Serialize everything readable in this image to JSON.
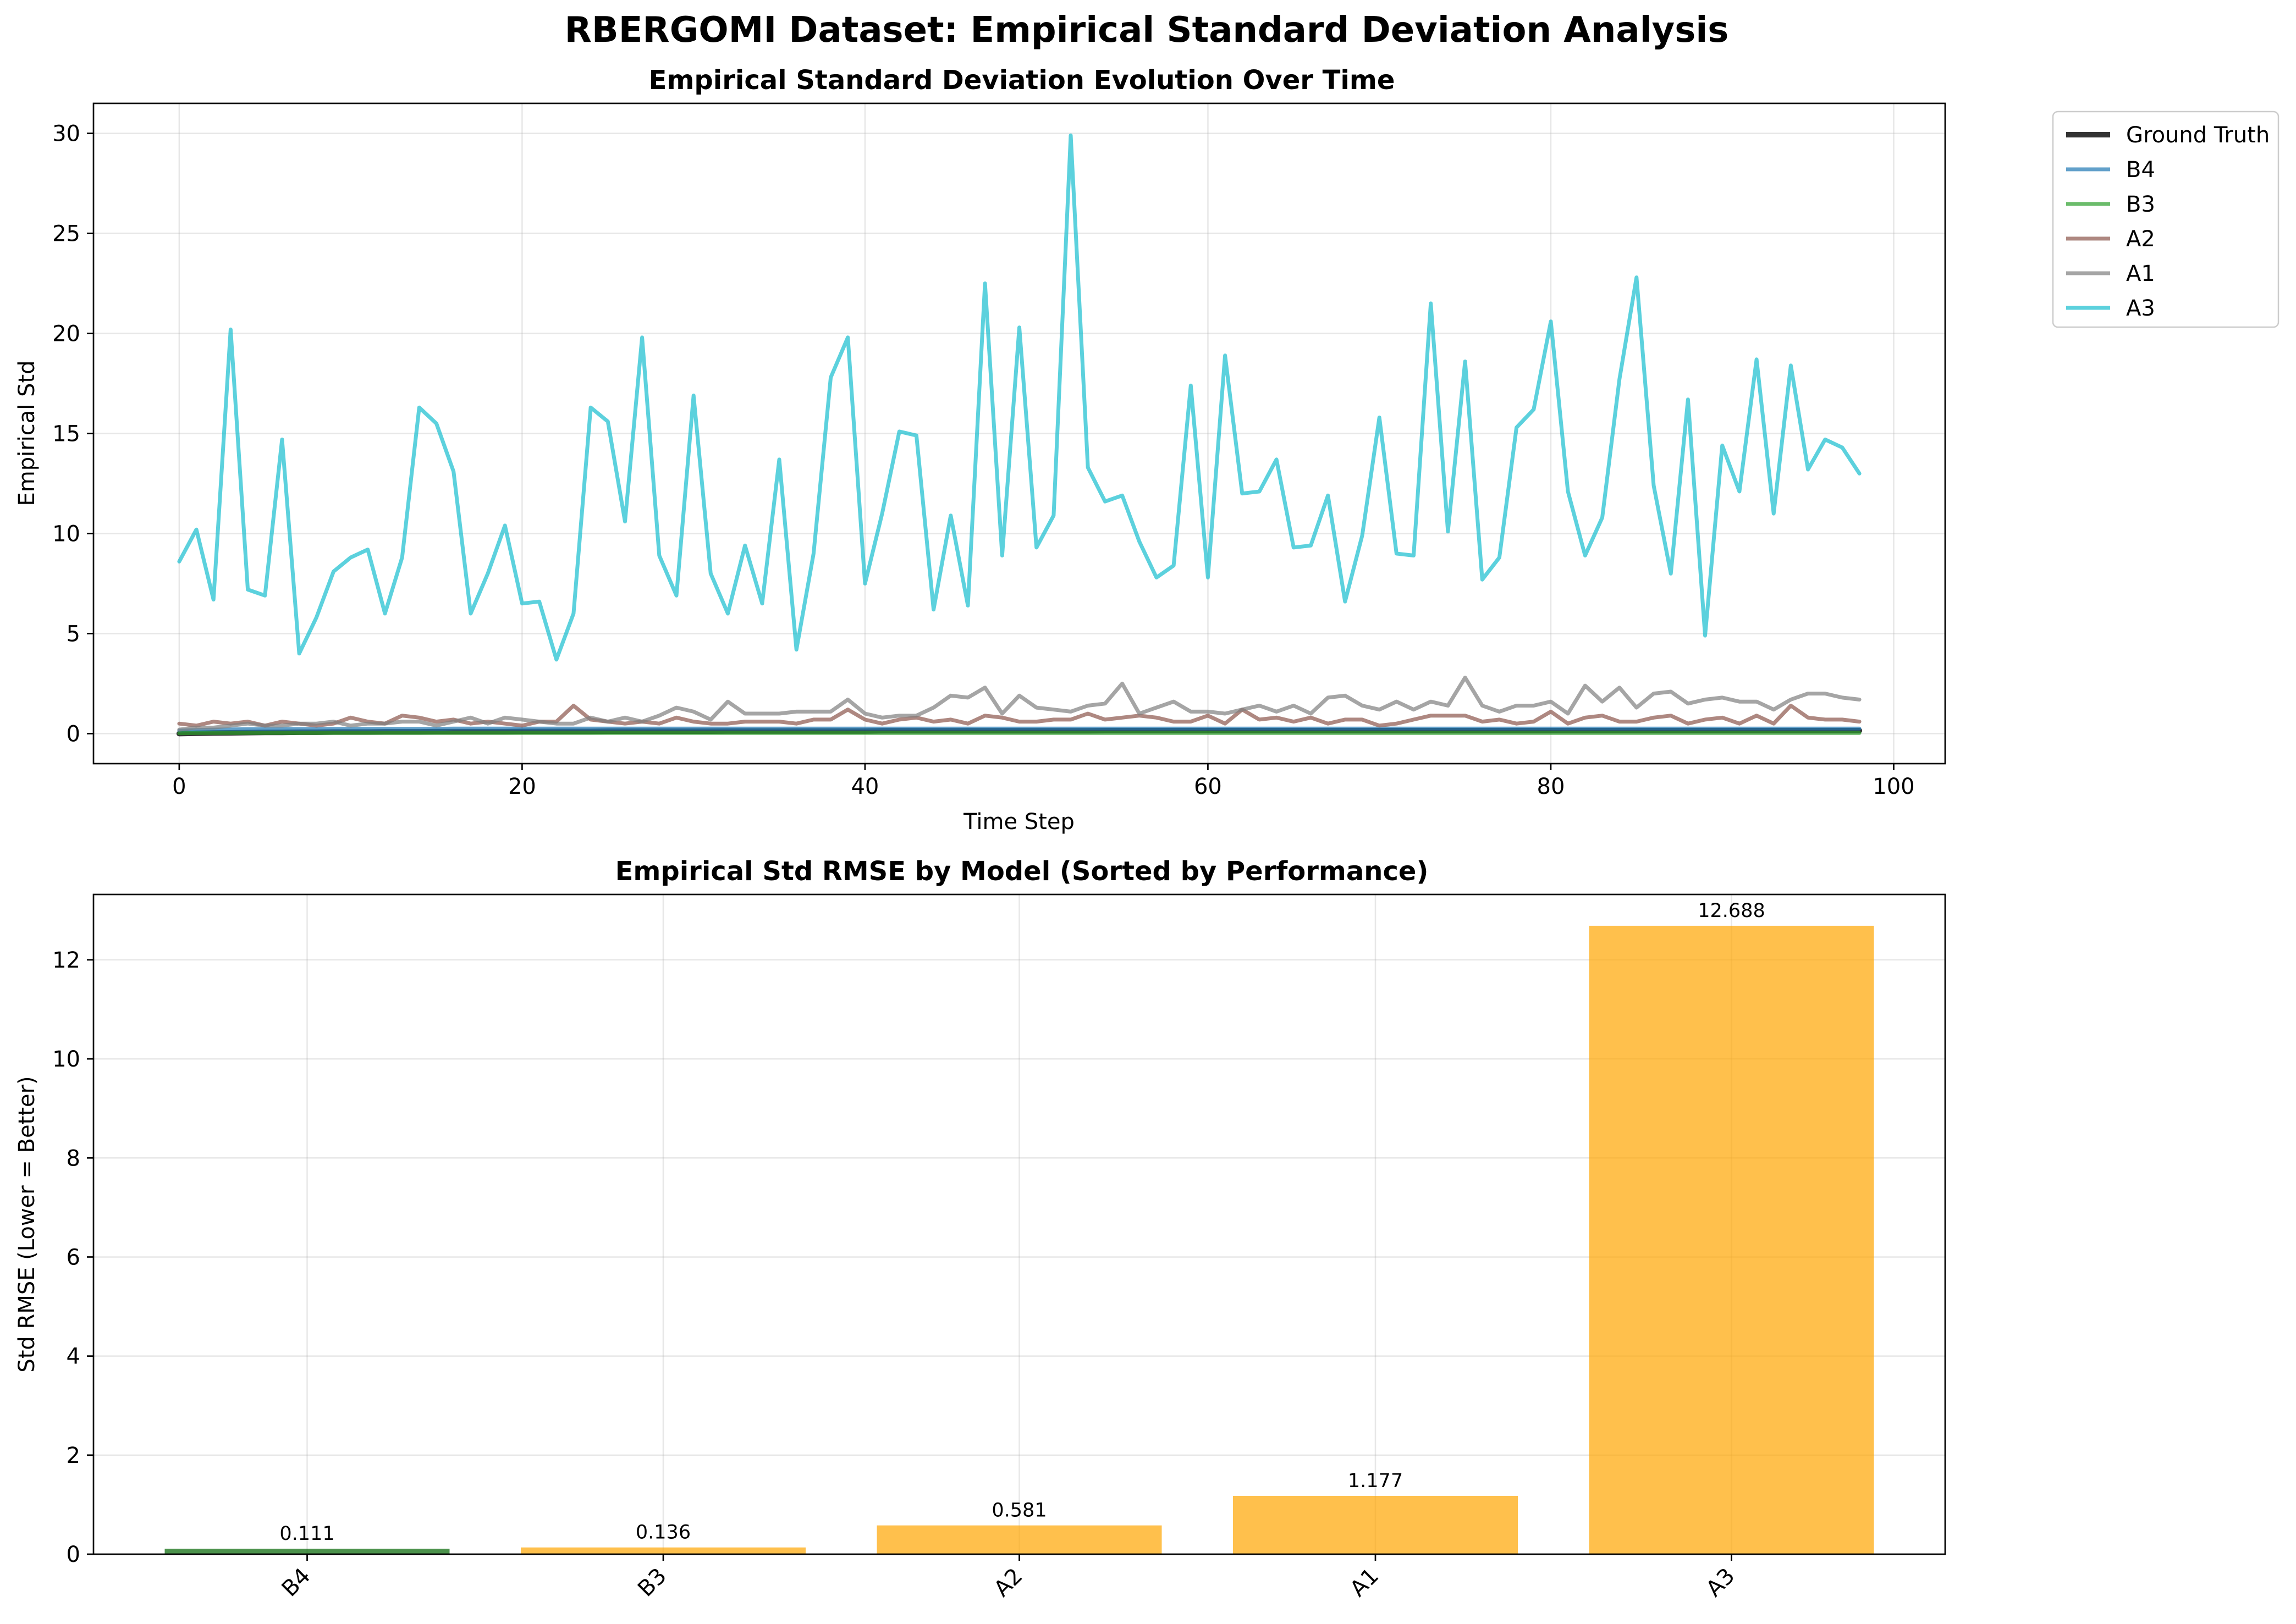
{
  "suptitle": "RBERGOMI Dataset: Empirical Standard Deviation Analysis",
  "chart_data": [
    {
      "type": "line",
      "title": "Empirical Standard Deviation Evolution Over Time",
      "xlabel": "Time Step",
      "ylabel": "Empirical Std",
      "xlim": [
        -5,
        103
      ],
      "ylim": [
        -1.5,
        31.5
      ],
      "xticks": [
        0,
        20,
        40,
        60,
        80,
        100
      ],
      "yticks": [
        0,
        5,
        10,
        15,
        20,
        25,
        30
      ],
      "grid": true,
      "legend_position": "outside upper right",
      "series": [
        {
          "name": "Ground Truth",
          "color": "#000000",
          "values": [
            0.0,
            0.02,
            0.03,
            0.04,
            0.05,
            0.06,
            0.06,
            0.07,
            0.07,
            0.08,
            0.08,
            0.08,
            0.09,
            0.09,
            0.09,
            0.1,
            0.1,
            0.1,
            0.1,
            0.1,
            0.11,
            0.11,
            0.11,
            0.11,
            0.11,
            0.12,
            0.12,
            0.12,
            0.12,
            0.12,
            0.12,
            0.12,
            0.13,
            0.13,
            0.13,
            0.13,
            0.13,
            0.13,
            0.13,
            0.13,
            0.13,
            0.14,
            0.14,
            0.14,
            0.14,
            0.14,
            0.14,
            0.14,
            0.14,
            0.14,
            0.14,
            0.14,
            0.14,
            0.14,
            0.15,
            0.15,
            0.15,
            0.15,
            0.15,
            0.15,
            0.15,
            0.15,
            0.15,
            0.15,
            0.15,
            0.15,
            0.15,
            0.15,
            0.15,
            0.15,
            0.15,
            0.15,
            0.15,
            0.15,
            0.15,
            0.15,
            0.15,
            0.15,
            0.15,
            0.15,
            0.15,
            0.15,
            0.15,
            0.15,
            0.15,
            0.15,
            0.15,
            0.15,
            0.15,
            0.15,
            0.15,
            0.15,
            0.15,
            0.15,
            0.15,
            0.15,
            0.15,
            0.15,
            0.15
          ]
        },
        {
          "name": "B4",
          "color": "#1f77b4",
          "values": [
            0.15,
            0.18,
            0.2,
            0.21,
            0.22,
            0.22,
            0.23,
            0.23,
            0.23,
            0.24,
            0.24,
            0.24,
            0.24,
            0.24,
            0.24,
            0.24,
            0.25,
            0.25,
            0.25,
            0.25,
            0.25,
            0.25,
            0.25,
            0.25,
            0.25,
            0.25,
            0.25,
            0.25,
            0.25,
            0.25,
            0.25,
            0.25,
            0.25,
            0.25,
            0.25,
            0.25,
            0.25,
            0.25,
            0.25,
            0.25,
            0.25,
            0.25,
            0.25,
            0.25,
            0.25,
            0.25,
            0.25,
            0.25,
            0.25,
            0.25,
            0.25,
            0.25,
            0.25,
            0.25,
            0.25,
            0.25,
            0.25,
            0.25,
            0.25,
            0.25,
            0.25,
            0.25,
            0.25,
            0.25,
            0.25,
            0.25,
            0.25,
            0.25,
            0.25,
            0.25,
            0.25,
            0.25,
            0.25,
            0.25,
            0.25,
            0.25,
            0.25,
            0.25,
            0.25,
            0.25,
            0.25,
            0.25,
            0.25,
            0.25,
            0.25,
            0.25,
            0.25,
            0.25,
            0.25,
            0.25,
            0.25,
            0.25,
            0.25,
            0.25,
            0.25,
            0.25,
            0.25,
            0.25,
            0.25
          ]
        },
        {
          "name": "B3",
          "color": "#2ca02c",
          "values": [
            0.02,
            0.03,
            0.03,
            0.03,
            0.03,
            0.03,
            0.03,
            0.03,
            0.03,
            0.03,
            0.03,
            0.03,
            0.03,
            0.03,
            0.03,
            0.03,
            0.03,
            0.03,
            0.03,
            0.03,
            0.03,
            0.03,
            0.03,
            0.03,
            0.03,
            0.03,
            0.03,
            0.03,
            0.03,
            0.03,
            0.03,
            0.03,
            0.03,
            0.03,
            0.03,
            0.03,
            0.03,
            0.03,
            0.03,
            0.03,
            0.03,
            0.03,
            0.03,
            0.03,
            0.03,
            0.03,
            0.03,
            0.03,
            0.03,
            0.03,
            0.03,
            0.03,
            0.03,
            0.03,
            0.03,
            0.03,
            0.03,
            0.03,
            0.03,
            0.03,
            0.03,
            0.03,
            0.03,
            0.03,
            0.03,
            0.03,
            0.03,
            0.03,
            0.03,
            0.03,
            0.03,
            0.03,
            0.03,
            0.03,
            0.03,
            0.03,
            0.03,
            0.03,
            0.03,
            0.03,
            0.03,
            0.03,
            0.03,
            0.03,
            0.03,
            0.03,
            0.03,
            0.03,
            0.03,
            0.03,
            0.03,
            0.03,
            0.03,
            0.03,
            0.03,
            0.03,
            0.03,
            0.03,
            0.03
          ]
        },
        {
          "name": "A2",
          "color": "#8c564b",
          "values": [
            0.5,
            0.4,
            0.6,
            0.5,
            0.6,
            0.4,
            0.6,
            0.5,
            0.4,
            0.5,
            0.8,
            0.6,
            0.5,
            0.9,
            0.8,
            0.6,
            0.7,
            0.5,
            0.6,
            0.5,
            0.4,
            0.6,
            0.6,
            1.4,
            0.7,
            0.6,
            0.5,
            0.6,
            0.5,
            0.8,
            0.6,
            0.5,
            0.5,
            0.6,
            0.6,
            0.6,
            0.5,
            0.7,
            0.7,
            1.2,
            0.7,
            0.5,
            0.7,
            0.8,
            0.6,
            0.7,
            0.5,
            0.9,
            0.8,
            0.6,
            0.6,
            0.7,
            0.7,
            1.0,
            0.7,
            0.8,
            0.9,
            0.8,
            0.6,
            0.6,
            0.9,
            0.5,
            1.2,
            0.7,
            0.8,
            0.6,
            0.8,
            0.5,
            0.7,
            0.7,
            0.4,
            0.5,
            0.7,
            0.9,
            0.9,
            0.9,
            0.6,
            0.7,
            0.5,
            0.6,
            1.1,
            0.5,
            0.8,
            0.9,
            0.6,
            0.6,
            0.8,
            0.9,
            0.5,
            0.7,
            0.8,
            0.5,
            0.9,
            0.5,
            1.4,
            0.8,
            0.7,
            0.7,
            0.6
          ]
        },
        {
          "name": "A1",
          "color": "#7f7f7f",
          "values": [
            0.2,
            0.3,
            0.3,
            0.4,
            0.5,
            0.4,
            0.4,
            0.5,
            0.5,
            0.6,
            0.4,
            0.5,
            0.5,
            0.6,
            0.6,
            0.4,
            0.6,
            0.8,
            0.5,
            0.8,
            0.7,
            0.6,
            0.5,
            0.5,
            0.8,
            0.6,
            0.8,
            0.6,
            0.9,
            1.3,
            1.1,
            0.7,
            1.6,
            1.0,
            1.0,
            1.0,
            1.1,
            1.1,
            1.1,
            1.7,
            1.0,
            0.8,
            0.9,
            0.9,
            1.3,
            1.9,
            1.8,
            2.3,
            1.0,
            1.9,
            1.3,
            1.2,
            1.1,
            1.4,
            1.5,
            2.5,
            1.0,
            1.3,
            1.6,
            1.1,
            1.1,
            1.0,
            1.2,
            1.4,
            1.1,
            1.4,
            1.0,
            1.8,
            1.9,
            1.4,
            1.2,
            1.6,
            1.2,
            1.6,
            1.4,
            2.8,
            1.4,
            1.1,
            1.4,
            1.4,
            1.6,
            1.0,
            2.4,
            1.6,
            2.3,
            1.3,
            2.0,
            2.1,
            1.5,
            1.7,
            1.8,
            1.6,
            1.6,
            1.2,
            1.7,
            2.0,
            2.0,
            1.8,
            1.7
          ]
        },
        {
          "name": "A3",
          "color": "#17becf",
          "values": [
            8.6,
            10.2,
            6.7,
            20.2,
            7.2,
            6.9,
            14.7,
            4.0,
            5.8,
            8.1,
            8.8,
            9.2,
            6.0,
            8.8,
            16.3,
            15.5,
            13.1,
            6.0,
            8.0,
            10.4,
            6.5,
            6.6,
            3.7,
            6.0,
            16.3,
            15.6,
            10.6,
            19.8,
            8.9,
            6.9,
            16.9,
            8.0,
            6.0,
            9.4,
            6.5,
            13.7,
            4.2,
            9.0,
            17.8,
            19.8,
            7.5,
            11.0,
            15.1,
            14.9,
            6.2,
            10.9,
            6.4,
            22.5,
            8.9,
            20.3,
            9.3,
            10.9,
            29.9,
            13.3,
            11.6,
            11.9,
            9.6,
            7.8,
            8.4,
            17.4,
            7.8,
            18.9,
            12.0,
            12.1,
            13.7,
            9.3,
            9.4,
            11.9,
            6.6,
            9.9,
            15.8,
            9.0,
            8.9,
            21.5,
            10.1,
            18.6,
            7.7,
            8.8,
            15.3,
            16.2,
            20.6,
            12.1,
            8.9,
            10.8,
            17.7,
            22.8,
            12.4,
            8.0,
            16.7,
            4.9,
            14.4,
            12.1,
            18.7,
            11.0,
            18.4,
            13.2,
            14.7,
            14.3,
            13.0
          ]
        }
      ]
    },
    {
      "type": "bar",
      "title": "Empirical Std RMSE by Model (Sorted by Performance)",
      "xlabel": "",
      "ylabel": "Std RMSE (Lower = Better)",
      "ylim": [
        0,
        13.32
      ],
      "yticks": [
        0,
        2,
        4,
        6,
        8,
        10,
        12
      ],
      "grid": true,
      "categories": [
        "B4",
        "B3",
        "A2",
        "A1",
        "A3"
      ],
      "values": [
        0.111,
        0.136,
        0.581,
        1.177,
        12.688
      ],
      "labels": [
        "0.111",
        "0.136",
        "0.581",
        "1.177",
        "12.688"
      ],
      "colors": [
        "#006400",
        "#ffa500",
        "#ffa500",
        "#ffa500",
        "#ffa500"
      ]
    }
  ]
}
